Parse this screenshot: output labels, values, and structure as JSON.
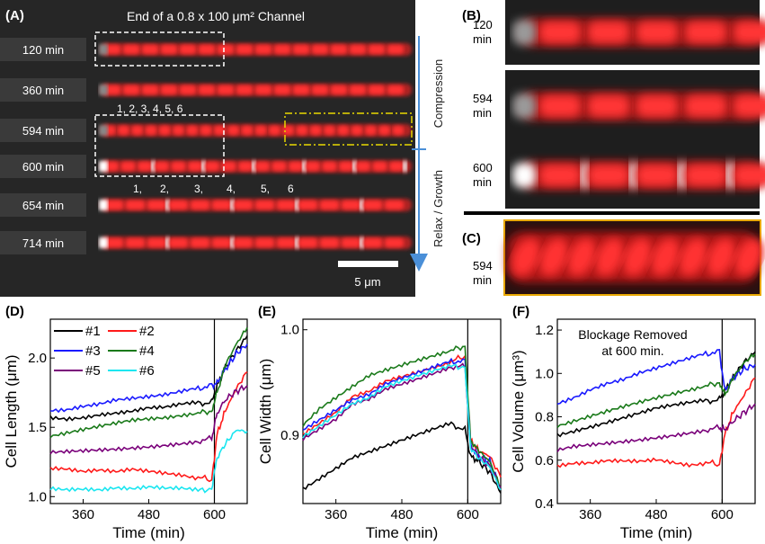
{
  "panelA": {
    "label": "(A)",
    "title": "End of a 0.8 x 100 μm² Channel",
    "rows": [
      "120 min",
      "360 min",
      "594 min",
      "600 min",
      "654 min",
      "714 min"
    ],
    "cells_before": "1, 2,  3,  4,  5, 6",
    "cells_after": [
      "1,",
      "2,",
      "3,",
      "4,",
      "5,",
      "6"
    ],
    "arrow_top": "Compression",
    "arrow_bottom": "Relax / Growth",
    "scalebar": "5 μm"
  },
  "panelB": {
    "label": "(B)",
    "rows": [
      "120\nmin",
      "594\nmin",
      "600\nmin"
    ]
  },
  "panelC": {
    "label": "(C)",
    "row": "594\nmin"
  },
  "colors": {
    "c1": "#000000",
    "c2": "#ff1a1a",
    "c3": "#1a1aff",
    "c4": "#1a7a1a",
    "c5": "#7a007a",
    "c6": "#1ae6f0"
  },
  "chart_data": [
    {
      "type": "line",
      "panel": "(D)",
      "xlabel": "Time (min)",
      "ylabel": "Cell Length (μm)",
      "xlim": [
        300,
        660
      ],
      "ylim": [
        0.95,
        2.28
      ],
      "xticks": [
        360,
        480,
        600
      ],
      "yticks": [
        1.0,
        1.5,
        2.0
      ],
      "vline": 600,
      "x": [
        300,
        330,
        360,
        390,
        420,
        450,
        480,
        510,
        540,
        570,
        595,
        605,
        620,
        640,
        660
      ],
      "series": [
        {
          "name": "#1",
          "color": "#000000",
          "values": [
            1.58,
            1.57,
            1.58,
            1.6,
            1.61,
            1.62,
            1.64,
            1.64,
            1.66,
            1.67,
            1.68,
            1.8,
            1.93,
            2.05,
            2.16
          ]
        },
        {
          "name": "#2",
          "color": "#ff1a1a",
          "values": [
            1.2,
            1.19,
            1.17,
            1.18,
            1.17,
            1.19,
            1.18,
            1.17,
            1.16,
            1.14,
            1.12,
            1.45,
            1.62,
            1.78,
            1.9
          ]
        },
        {
          "name": "#3",
          "color": "#1a1aff",
          "values": [
            1.62,
            1.63,
            1.66,
            1.68,
            1.71,
            1.72,
            1.73,
            1.74,
            1.76,
            1.78,
            1.8,
            1.82,
            1.92,
            2.03,
            2.1
          ]
        },
        {
          "name": "#4",
          "color": "#1a7a1a",
          "values": [
            1.44,
            1.46,
            1.48,
            1.5,
            1.52,
            1.54,
            1.55,
            1.56,
            1.58,
            1.6,
            1.62,
            1.75,
            1.95,
            2.1,
            2.22
          ]
        },
        {
          "name": "#5",
          "color": "#7a007a",
          "values": [
            1.31,
            1.32,
            1.33,
            1.34,
            1.35,
            1.36,
            1.37,
            1.38,
            1.39,
            1.4,
            1.42,
            1.6,
            1.7,
            1.76,
            1.8
          ]
        },
        {
          "name": "#6",
          "color": "#1ae6f0",
          "values": [
            1.07,
            1.06,
            1.06,
            1.05,
            1.06,
            1.05,
            1.06,
            1.05,
            1.05,
            1.04,
            1.06,
            1.28,
            1.38,
            1.48,
            1.47
          ]
        }
      ]
    },
    {
      "type": "line",
      "panel": "(E)",
      "xlabel": "Time (min)",
      "ylabel": "Cell Width (μm)",
      "xlim": [
        300,
        660
      ],
      "ylim": [
        0.835,
        1.01
      ],
      "xticks": [
        360,
        480,
        600
      ],
      "yticks": [
        0.9,
        1.0
      ],
      "vline": 600,
      "x": [
        300,
        330,
        360,
        390,
        420,
        450,
        480,
        510,
        540,
        570,
        595,
        605,
        620,
        640,
        660
      ],
      "series": [
        {
          "name": "#1",
          "color": "#000000",
          "values": [
            0.85,
            0.86,
            0.87,
            0.88,
            0.885,
            0.89,
            0.895,
            0.9,
            0.905,
            0.91,
            0.905,
            0.88,
            0.875,
            0.865,
            0.845
          ]
        },
        {
          "name": "#2",
          "color": "#ff1a1a",
          "values": [
            0.9,
            0.91,
            0.92,
            0.935,
            0.94,
            0.95,
            0.955,
            0.96,
            0.965,
            0.97,
            0.975,
            0.895,
            0.885,
            0.88,
            0.86
          ]
        },
        {
          "name": "#3",
          "color": "#1a1aff",
          "values": [
            0.905,
            0.915,
            0.925,
            0.935,
            0.94,
            0.95,
            0.955,
            0.96,
            0.965,
            0.97,
            0.97,
            0.89,
            0.88,
            0.875,
            0.85
          ]
        },
        {
          "name": "#4",
          "color": "#1a7a1a",
          "values": [
            0.91,
            0.925,
            0.935,
            0.945,
            0.955,
            0.96,
            0.965,
            0.97,
            0.975,
            0.98,
            0.985,
            0.895,
            0.885,
            0.875,
            0.85
          ]
        },
        {
          "name": "#5",
          "color": "#7a007a",
          "values": [
            0.895,
            0.905,
            0.915,
            0.93,
            0.935,
            0.945,
            0.95,
            0.955,
            0.96,
            0.965,
            0.965,
            0.89,
            0.88,
            0.87,
            0.85
          ]
        },
        {
          "name": "#6",
          "color": "#1ae6f0",
          "values": [
            0.9,
            0.91,
            0.92,
            0.93,
            0.935,
            0.945,
            0.95,
            0.955,
            0.96,
            0.965,
            0.965,
            0.888,
            0.878,
            0.87,
            0.848
          ]
        }
      ]
    },
    {
      "type": "line",
      "panel": "(F)",
      "xlabel": "Time (min)",
      "ylabel": "Cell Volume (μm³)",
      "xlim": [
        300,
        660
      ],
      "ylim": [
        0.4,
        1.25
      ],
      "xticks": [
        360,
        480,
        600
      ],
      "yticks": [
        0.4,
        0.6,
        0.8,
        1.0,
        1.2
      ],
      "vline": 600,
      "annotation": "Blockage Removed\nat 600 min.",
      "x": [
        300,
        330,
        360,
        390,
        420,
        450,
        480,
        510,
        540,
        570,
        595,
        605,
        620,
        640,
        660
      ],
      "series": [
        {
          "name": "#1",
          "color": "#000000",
          "values": [
            0.72,
            0.74,
            0.76,
            0.78,
            0.8,
            0.82,
            0.84,
            0.85,
            0.86,
            0.87,
            0.88,
            0.92,
            0.98,
            1.05,
            1.1
          ]
        },
        {
          "name": "#2",
          "color": "#ff1a1a",
          "values": [
            0.57,
            0.58,
            0.58,
            0.59,
            0.59,
            0.59,
            0.6,
            0.59,
            0.58,
            0.59,
            0.58,
            0.72,
            0.82,
            0.9,
            0.98
          ]
        },
        {
          "name": "#3",
          "color": "#1a1aff",
          "values": [
            0.86,
            0.89,
            0.93,
            0.96,
            0.98,
            1.01,
            1.03,
            1.05,
            1.07,
            1.09,
            1.1,
            0.92,
            0.98,
            1.02,
            1.04
          ]
        },
        {
          "name": "#4",
          "color": "#1a7a1a",
          "values": [
            0.76,
            0.78,
            0.8,
            0.82,
            0.84,
            0.86,
            0.88,
            0.9,
            0.92,
            0.94,
            0.96,
            0.9,
            0.98,
            1.05,
            1.09
          ]
        },
        {
          "name": "#5",
          "color": "#7a007a",
          "values": [
            0.64,
            0.66,
            0.67,
            0.68,
            0.69,
            0.7,
            0.71,
            0.72,
            0.73,
            0.74,
            0.75,
            0.74,
            0.78,
            0.82,
            0.86
          ]
        }
      ]
    }
  ]
}
